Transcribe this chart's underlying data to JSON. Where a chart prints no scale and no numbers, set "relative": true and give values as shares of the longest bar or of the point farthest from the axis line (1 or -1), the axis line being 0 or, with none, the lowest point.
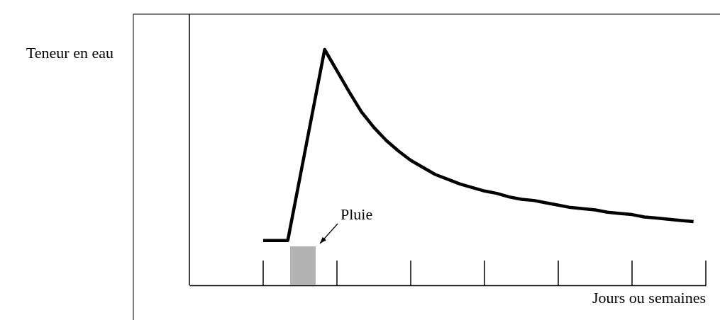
{
  "chart_data": {
    "type": "line",
    "relative": true,
    "ylabel": "Teneur en eau",
    "xlabel": "Jours ou semaines",
    "categories": [
      null,
      null,
      null,
      null,
      null,
      null,
      null,
      null,
      null,
      null,
      null,
      null,
      null,
      null,
      null,
      null,
      null,
      null,
      null,
      null,
      null,
      null,
      null,
      null,
      null,
      null,
      null,
      null,
      null,
      null,
      null,
      null,
      null,
      null,
      null,
      null,
      null,
      null,
      null,
      null,
      null,
      null,
      null
    ],
    "series": [
      {
        "color": "#000000",
        "values": [
          null,
          null,
          null,
          null,
          null,
          null,
          0.19,
          0.19,
          0.19,
          0.46,
          0.73,
          1,
          0.91,
          0.82,
          0.735,
          0.67,
          0.615,
          0.57,
          0.53,
          0.5,
          0.47,
          0.45,
          0.43,
          0.415,
          0.4,
          0.39,
          0.375,
          0.365,
          0.36,
          0.35,
          0.34,
          0.33,
          0.325,
          0.32,
          0.31,
          0.305,
          0.3,
          0.29,
          0.285,
          0.28,
          0.275,
          0.27,
          null
        ]
      }
    ],
    "annotations": [
      "Pluie"
    ],
    "line_style": "solid"
  }
}
